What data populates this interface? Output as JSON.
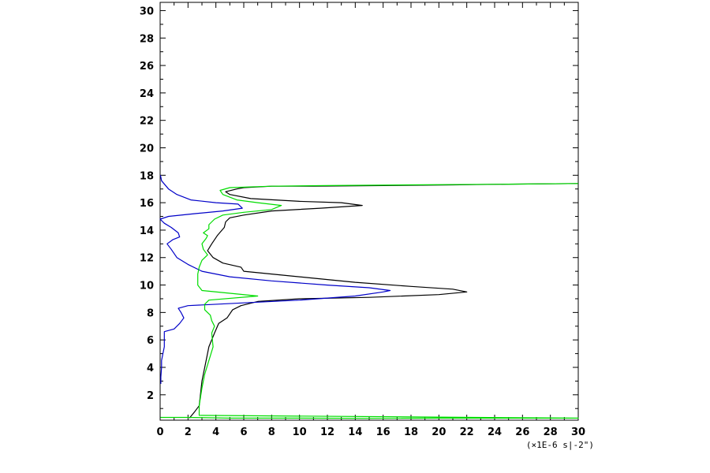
{
  "chart_data": {
    "type": "line",
    "title": "",
    "xlabel": "",
    "ylabel": "",
    "x_unit_label": "(×1E-6 s|-2\")",
    "xlim": [
      0,
      30
    ],
    "ylim": [
      0.15,
      30.6
    ],
    "x_ticks": [
      0,
      2,
      4,
      6,
      8,
      10,
      12,
      14,
      16,
      18,
      20,
      22,
      24,
      26,
      28,
      30
    ],
    "y_ticks": [
      2,
      4,
      6,
      8,
      10,
      12,
      14,
      16,
      18,
      20,
      22,
      24,
      26,
      28,
      30
    ],
    "grid": false,
    "legend": "none",
    "series": [
      {
        "color": "#000000",
        "points": [
          [
            2.1,
            0.3
          ],
          [
            2.5,
            0.8
          ],
          [
            2.8,
            1.2
          ],
          [
            3.0,
            3.0
          ],
          [
            3.3,
            4.5
          ],
          [
            3.5,
            5.5
          ],
          [
            3.9,
            6.5
          ],
          [
            4.2,
            7.2
          ],
          [
            4.8,
            7.6
          ],
          [
            5.2,
            8.2
          ],
          [
            5.8,
            8.5
          ],
          [
            7.0,
            8.8
          ],
          [
            10.0,
            9.0
          ],
          [
            15.0,
            9.1
          ],
          [
            20.0,
            9.3
          ],
          [
            22.0,
            9.5
          ],
          [
            21.0,
            9.7
          ],
          [
            18.0,
            9.9
          ],
          [
            14.0,
            10.2
          ],
          [
            11.0,
            10.5
          ],
          [
            8.0,
            10.8
          ],
          [
            6.0,
            11.0
          ],
          [
            5.8,
            11.3
          ],
          [
            4.5,
            11.6
          ],
          [
            3.8,
            12.0
          ],
          [
            3.4,
            12.5
          ],
          [
            3.7,
            13.0
          ],
          [
            4.1,
            13.6
          ],
          [
            4.6,
            14.2
          ],
          [
            4.7,
            14.6
          ],
          [
            5.0,
            14.9
          ],
          [
            6.0,
            15.1
          ],
          [
            8.0,
            15.4
          ],
          [
            11.5,
            15.6
          ],
          [
            14.5,
            15.8
          ],
          [
            13.0,
            16.0
          ],
          [
            10.0,
            16.1
          ],
          [
            6.5,
            16.3
          ],
          [
            5.0,
            16.6
          ],
          [
            4.7,
            16.8
          ],
          [
            5.5,
            17.0
          ],
          [
            6.0,
            17.1
          ],
          [
            8.0,
            17.2
          ],
          [
            11.0,
            17.2
          ],
          [
            16.0,
            17.25
          ],
          [
            21.0,
            17.3
          ],
          [
            25.0,
            17.35
          ],
          [
            30.0,
            17.4
          ]
        ]
      },
      {
        "color": "#0000c8",
        "points": [
          [
            0.05,
            2.8
          ],
          [
            0.05,
            3.3
          ],
          [
            0.1,
            4.0
          ],
          [
            0.1,
            4.5
          ],
          [
            0.2,
            5.0
          ],
          [
            0.3,
            5.5
          ],
          [
            0.3,
            6.0
          ],
          [
            0.3,
            6.6
          ],
          [
            1.0,
            6.8
          ],
          [
            1.4,
            7.2
          ],
          [
            1.7,
            7.6
          ],
          [
            1.5,
            8.0
          ],
          [
            1.3,
            8.3
          ],
          [
            2.0,
            8.5
          ],
          [
            6.0,
            8.7
          ],
          [
            10.0,
            8.9
          ],
          [
            14.0,
            9.2
          ],
          [
            16.0,
            9.5
          ],
          [
            16.5,
            9.6
          ],
          [
            15.0,
            9.8
          ],
          [
            12.0,
            10.0
          ],
          [
            8.0,
            10.3
          ],
          [
            5.0,
            10.6
          ],
          [
            3.0,
            11.0
          ],
          [
            2.0,
            11.5
          ],
          [
            1.2,
            12.0
          ],
          [
            0.8,
            12.6
          ],
          [
            0.5,
            13.0
          ],
          [
            0.9,
            13.3
          ],
          [
            1.4,
            13.5
          ],
          [
            1.3,
            13.8
          ],
          [
            0.8,
            14.2
          ],
          [
            0.3,
            14.5
          ],
          [
            0.0,
            14.8
          ],
          [
            0.6,
            15.0
          ],
          [
            2.5,
            15.2
          ],
          [
            4.5,
            15.4
          ],
          [
            5.9,
            15.6
          ],
          [
            5.6,
            15.9
          ],
          [
            4.0,
            16.0
          ],
          [
            2.2,
            16.2
          ],
          [
            1.2,
            16.6
          ],
          [
            0.6,
            17.0
          ],
          [
            0.1,
            17.6
          ],
          [
            0.02,
            18.0
          ]
        ]
      },
      {
        "color": "#00dc00",
        "points": [
          [
            0.02,
            0.35
          ],
          [
            2.0,
            0.35
          ],
          [
            5.0,
            0.3
          ],
          [
            10.0,
            0.3
          ],
          [
            15.0,
            0.28
          ],
          [
            20.0,
            0.3
          ],
          [
            25.0,
            0.3
          ],
          [
            30.0,
            0.3
          ],
          [
            2.8,
            0.5
          ],
          [
            2.8,
            1.2
          ],
          [
            3.0,
            2.5
          ],
          [
            3.2,
            3.5
          ],
          [
            3.5,
            4.5
          ],
          [
            3.8,
            5.5
          ],
          [
            3.7,
            6.5
          ],
          [
            3.9,
            7.0
          ],
          [
            3.7,
            7.4
          ],
          [
            3.6,
            7.8
          ],
          [
            3.2,
            8.2
          ],
          [
            3.2,
            8.6
          ],
          [
            3.5,
            8.9
          ],
          [
            7.0,
            9.2
          ],
          [
            5.0,
            9.4
          ],
          [
            3.0,
            9.6
          ],
          [
            2.7,
            10.0
          ],
          [
            2.7,
            10.4
          ],
          [
            2.7,
            10.8
          ],
          [
            2.8,
            11.3
          ],
          [
            3.0,
            11.8
          ],
          [
            3.4,
            12.2
          ],
          [
            3.1,
            12.6
          ],
          [
            3.0,
            13.0
          ],
          [
            3.3,
            13.4
          ],
          [
            3.4,
            13.6
          ],
          [
            3.1,
            13.8
          ],
          [
            3.5,
            14.1
          ],
          [
            3.5,
            14.4
          ],
          [
            3.9,
            14.8
          ],
          [
            4.5,
            15.1
          ],
          [
            6.0,
            15.3
          ],
          [
            8.0,
            15.5
          ],
          [
            8.7,
            15.8
          ],
          [
            7.0,
            16.0
          ],
          [
            5.5,
            16.2
          ],
          [
            4.5,
            16.6
          ],
          [
            4.3,
            16.9
          ],
          [
            5.0,
            17.1
          ],
          [
            8.0,
            17.2
          ],
          [
            12.0,
            17.25
          ],
          [
            18.0,
            17.3
          ],
          [
            25.0,
            17.35
          ],
          [
            30.0,
            17.4
          ]
        ]
      }
    ]
  }
}
